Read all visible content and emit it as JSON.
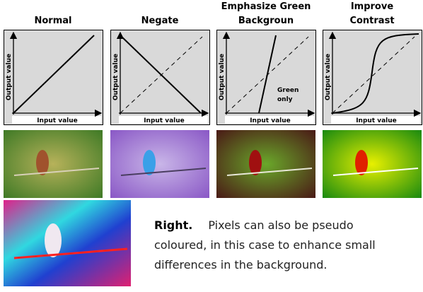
{
  "panels": [
    {
      "title": [
        "Normal"
      ],
      "x_label": "Input value",
      "y_label": "Output value"
    },
    {
      "title": [
        "Negate"
      ],
      "x_label": "Input value",
      "y_label": "Output value"
    },
    {
      "title": [
        "Emphasize Green",
        "Backgroun"
      ],
      "x_label": "Input value",
      "y_label": "Output value",
      "annotation": [
        "Green",
        "only"
      ]
    },
    {
      "title": [
        "Improve",
        "Contrast"
      ],
      "x_label": "Input value",
      "y_label": "Output value"
    }
  ],
  "caption": {
    "lead": "Right.",
    "lines": [
      "Pixels can also be pseudo",
      "coloured, in this case to enhance small",
      "differences in the background."
    ]
  }
}
